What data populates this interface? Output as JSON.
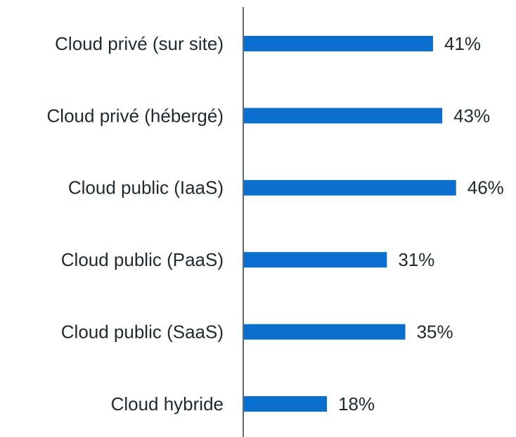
{
  "chart_data": {
    "type": "bar",
    "orientation": "horizontal",
    "categories": [
      "Cloud privé (sur site)",
      "Cloud privé (hébergé)",
      "Cloud public (IaaS)",
      "Cloud public (PaaS)",
      "Cloud public (SaaS)",
      "Cloud hybride"
    ],
    "values": [
      41,
      43,
      46,
      31,
      35,
      18
    ],
    "value_labels": [
      "41%",
      "43%",
      "46%",
      "31%",
      "35%",
      "18%"
    ],
    "color": "#0a6fcf"
  }
}
